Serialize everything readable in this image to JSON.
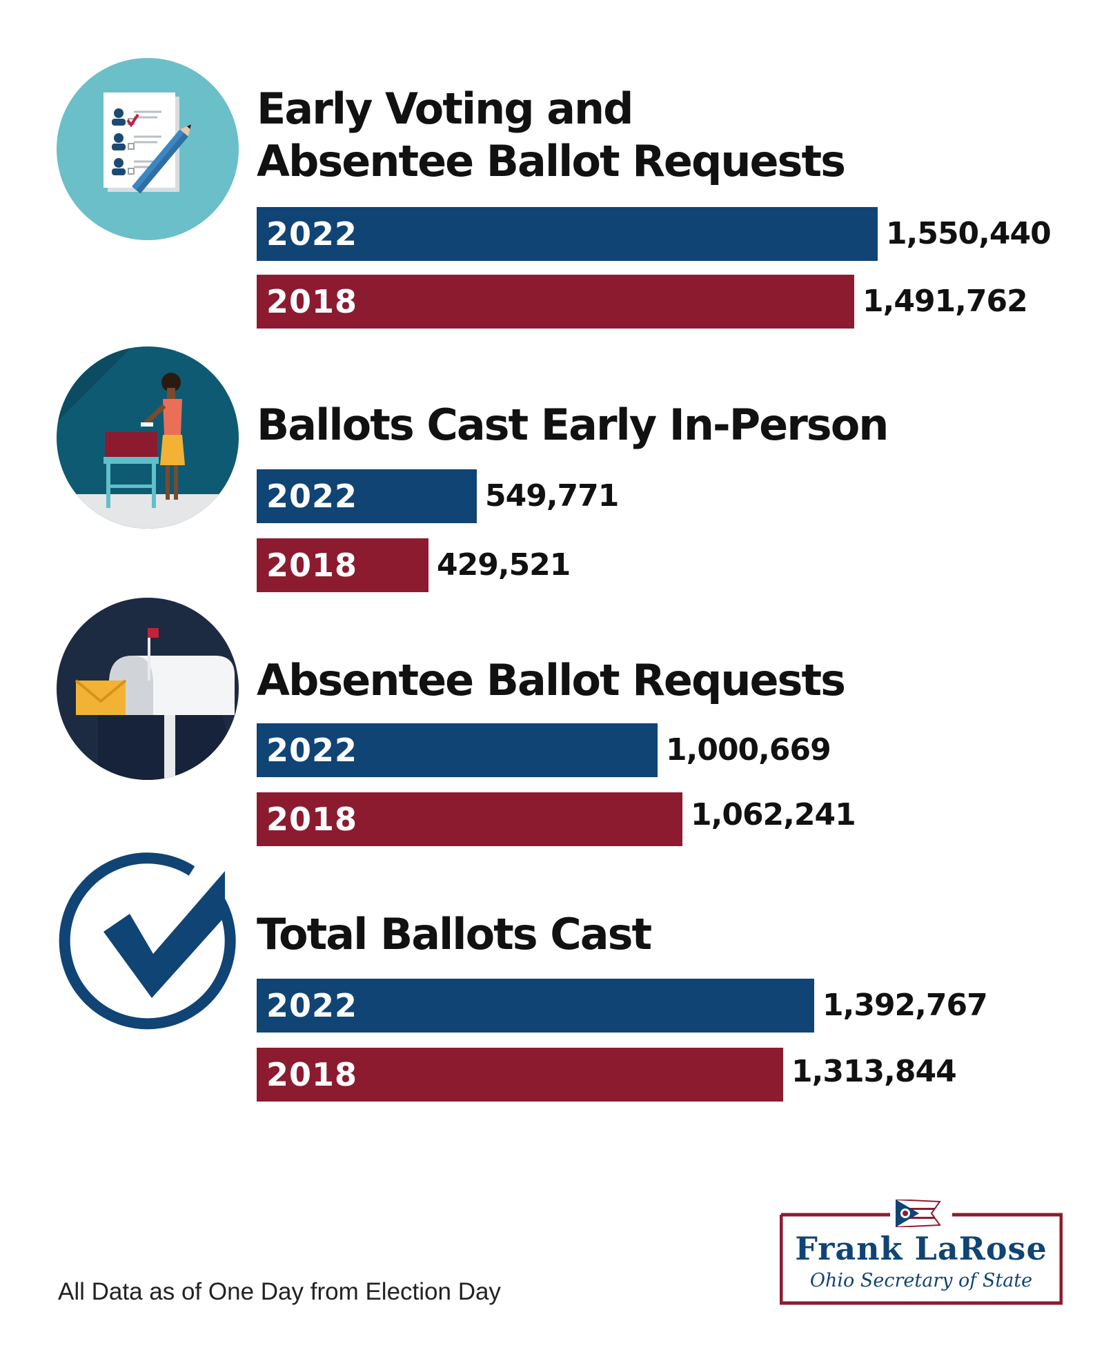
{
  "colors": {
    "y2022": "#0f4475",
    "y2018": "#8c1b30",
    "text": "#111111"
  },
  "chart_data": {
    "type": "bar",
    "orientation": "horizontal",
    "legend": "none",
    "grid": false,
    "xlim": [
      0,
      1550440
    ],
    "groups": [
      {
        "icon": "ballot-checklist-icon",
        "title": "Early Voting and\nAbsentee Ballot Requests",
        "bars": [
          {
            "year": "2022",
            "value": 1550440,
            "label": "1,550,440"
          },
          {
            "year": "2018",
            "value": 1491762,
            "label": "1,491,762"
          }
        ]
      },
      {
        "icon": "voter-at-ballot-box-icon",
        "title": "Ballots Cast Early In-Person",
        "bars": [
          {
            "year": "2022",
            "value": 549771,
            "label": "549,771"
          },
          {
            "year": "2018",
            "value": 429521,
            "label": "429,521"
          }
        ]
      },
      {
        "icon": "mailbox-envelope-icon",
        "title": "Absentee Ballot Requests",
        "bars": [
          {
            "year": "2022",
            "value": 1000669,
            "label": "1,000,669"
          },
          {
            "year": "2018",
            "value": 1062241,
            "label": "1,062,241"
          }
        ]
      },
      {
        "icon": "checkmark-circle-icon",
        "title": "Total Ballots Cast",
        "bars": [
          {
            "year": "2022",
            "value": 1392767,
            "label": "1,392,767"
          },
          {
            "year": "2018",
            "value": 1313844,
            "label": "1,313,844"
          }
        ]
      }
    ]
  },
  "footnote": "All Data as of One Day from Election Day",
  "logo": {
    "name": "Frank LaRose",
    "subtitle": "Ohio Secretary of State",
    "icon": "ohio-flag-icon"
  }
}
